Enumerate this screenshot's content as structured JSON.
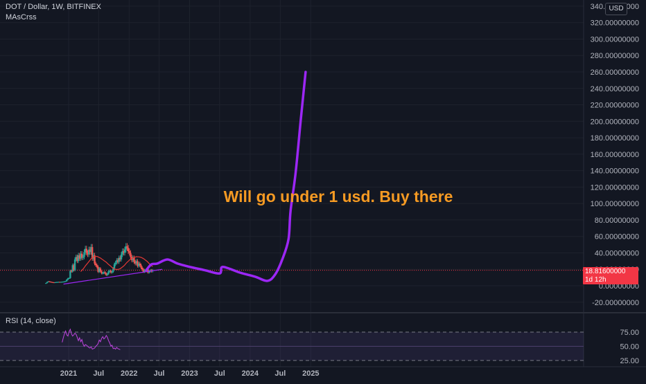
{
  "header": {
    "symbol": "DOT / Dollar, 1W, BITFINEX",
    "indicator": "MAsCrss",
    "currency": "USD"
  },
  "annotation": "Will go under 1 usd. Buy there",
  "price_tag": {
    "price": "18.81600000",
    "countdown": "1d 12h"
  },
  "rsi": {
    "label": "RSI (14, close)",
    "ticks": [
      "75.00",
      "50.00",
      "25.00"
    ]
  },
  "colors": {
    "background": "#131722",
    "up_candle": "#26a69a",
    "down_candle": "#ef5350",
    "projection": "#9c27f5",
    "annotation": "#f59a23",
    "ma_line": "#e53935",
    "rsi_line": "#c044e0",
    "price_tag": "#f23645"
  },
  "chart_data": {
    "type": "line",
    "title": "DOT / Dollar, 1W, BITFINEX",
    "yscale": "linear",
    "ylim": [
      -30,
      345
    ],
    "y_ticks": [
      "340.00000000",
      "320.00000000",
      "300.00000000",
      "280.00000000",
      "260.00000000",
      "240.00000000",
      "220.00000000",
      "200.00000000",
      "180.00000000",
      "160.00000000",
      "140.00000000",
      "120.00000000",
      "100.00000000",
      "80.00000000",
      "60.00000000",
      "40.00000000",
      "20.00000000",
      "0.00000000",
      "-20.00000000"
    ],
    "x_ticks": [
      "2021",
      "Jul",
      "2022",
      "Jul",
      "2023",
      "Jul",
      "2024",
      "Jul",
      "2025"
    ],
    "last_price": 18.816,
    "candles": {
      "date_start": "2020-08-17",
      "interval": "1W",
      "closes": [
        3.2,
        4.5,
        5.3,
        4.9,
        4.6,
        4.3,
        4.1,
        4.0,
        4.2,
        4.4,
        4.5,
        4.6,
        4.4,
        4.6,
        4.8,
        4.9,
        5.2,
        5.6,
        7.5,
        9.0,
        9.3,
        18.0,
        17.3,
        25.0,
        19.0,
        32.0,
        35.0,
        30.0,
        37.0,
        33.0,
        39.0,
        34.0,
        35.0,
        41.0,
        45.0,
        40.0,
        38.0,
        44.0,
        41.0,
        47.0,
        33.0,
        37.0,
        27.0,
        25.0,
        23.0,
        17.0,
        21.0,
        17.5,
        15.0,
        15.5,
        16.5,
        15.0,
        13.0,
        14.5,
        17.5,
        18.2,
        16.0,
        17.0,
        21.0,
        26.0,
        28.0,
        31.0,
        29.0,
        34.0,
        32.0,
        38.0,
        42.0,
        40.0,
        44.0,
        48.0,
        46.0,
        42.0,
        40.0,
        35.0,
        31.0,
        34.0,
        29.0,
        27.0,
        30.0,
        24.0,
        27.0,
        25.0,
        22.0,
        20.0,
        17.0,
        19.0,
        18.0,
        20.0,
        16.0,
        17.5,
        18.8,
        17.5,
        18.8
      ]
    },
    "series": [
      {
        "values": [
          {
            "x": "2022-04-15",
            "y": 19
          },
          {
            "x": "2022-05-15",
            "y": 26
          },
          {
            "x": "2022-06-20",
            "y": 27
          },
          {
            "x": "2022-08-20",
            "y": 32
          },
          {
            "x": "2022-10-20",
            "y": 27
          },
          {
            "x": "2023-01-01",
            "y": 23
          },
          {
            "x": "2023-04-01",
            "y": 19
          },
          {
            "x": "2023-07-01",
            "y": 15
          },
          {
            "x": "2023-07-20",
            "y": 23
          },
          {
            "x": "2023-11-01",
            "y": 16
          },
          {
            "x": "2024-02-01",
            "y": 11
          },
          {
            "x": "2024-04-15",
            "y": 6
          },
          {
            "x": "2024-06-01",
            "y": 14
          },
          {
            "x": "2024-07-15",
            "y": 33
          },
          {
            "x": "2024-08-20",
            "y": 57
          },
          {
            "x": "2024-09-01",
            "y": 91
          },
          {
            "x": "2024-10-01",
            "y": 136
          },
          {
            "x": "2024-11-01",
            "y": 200
          },
          {
            "x": "2024-12-01",
            "y": 260
          }
        ]
      }
    ],
    "rsi": {
      "ylim": [
        25,
        80
      ],
      "date_start": "2020-11-23",
      "interval": "1W",
      "values": [
        57,
        65,
        72,
        77,
        70,
        68,
        76,
        80,
        72,
        68,
        70,
        73,
        71,
        66,
        60,
        65,
        58,
        62,
        54,
        50,
        53,
        52,
        50,
        48,
        47,
        49,
        45,
        46,
        47,
        50,
        52,
        55,
        61,
        58,
        64,
        67,
        63,
        65,
        69,
        66,
        60,
        56,
        50,
        52,
        46,
        47,
        45,
        48,
        46,
        45,
        44
      ]
    }
  }
}
